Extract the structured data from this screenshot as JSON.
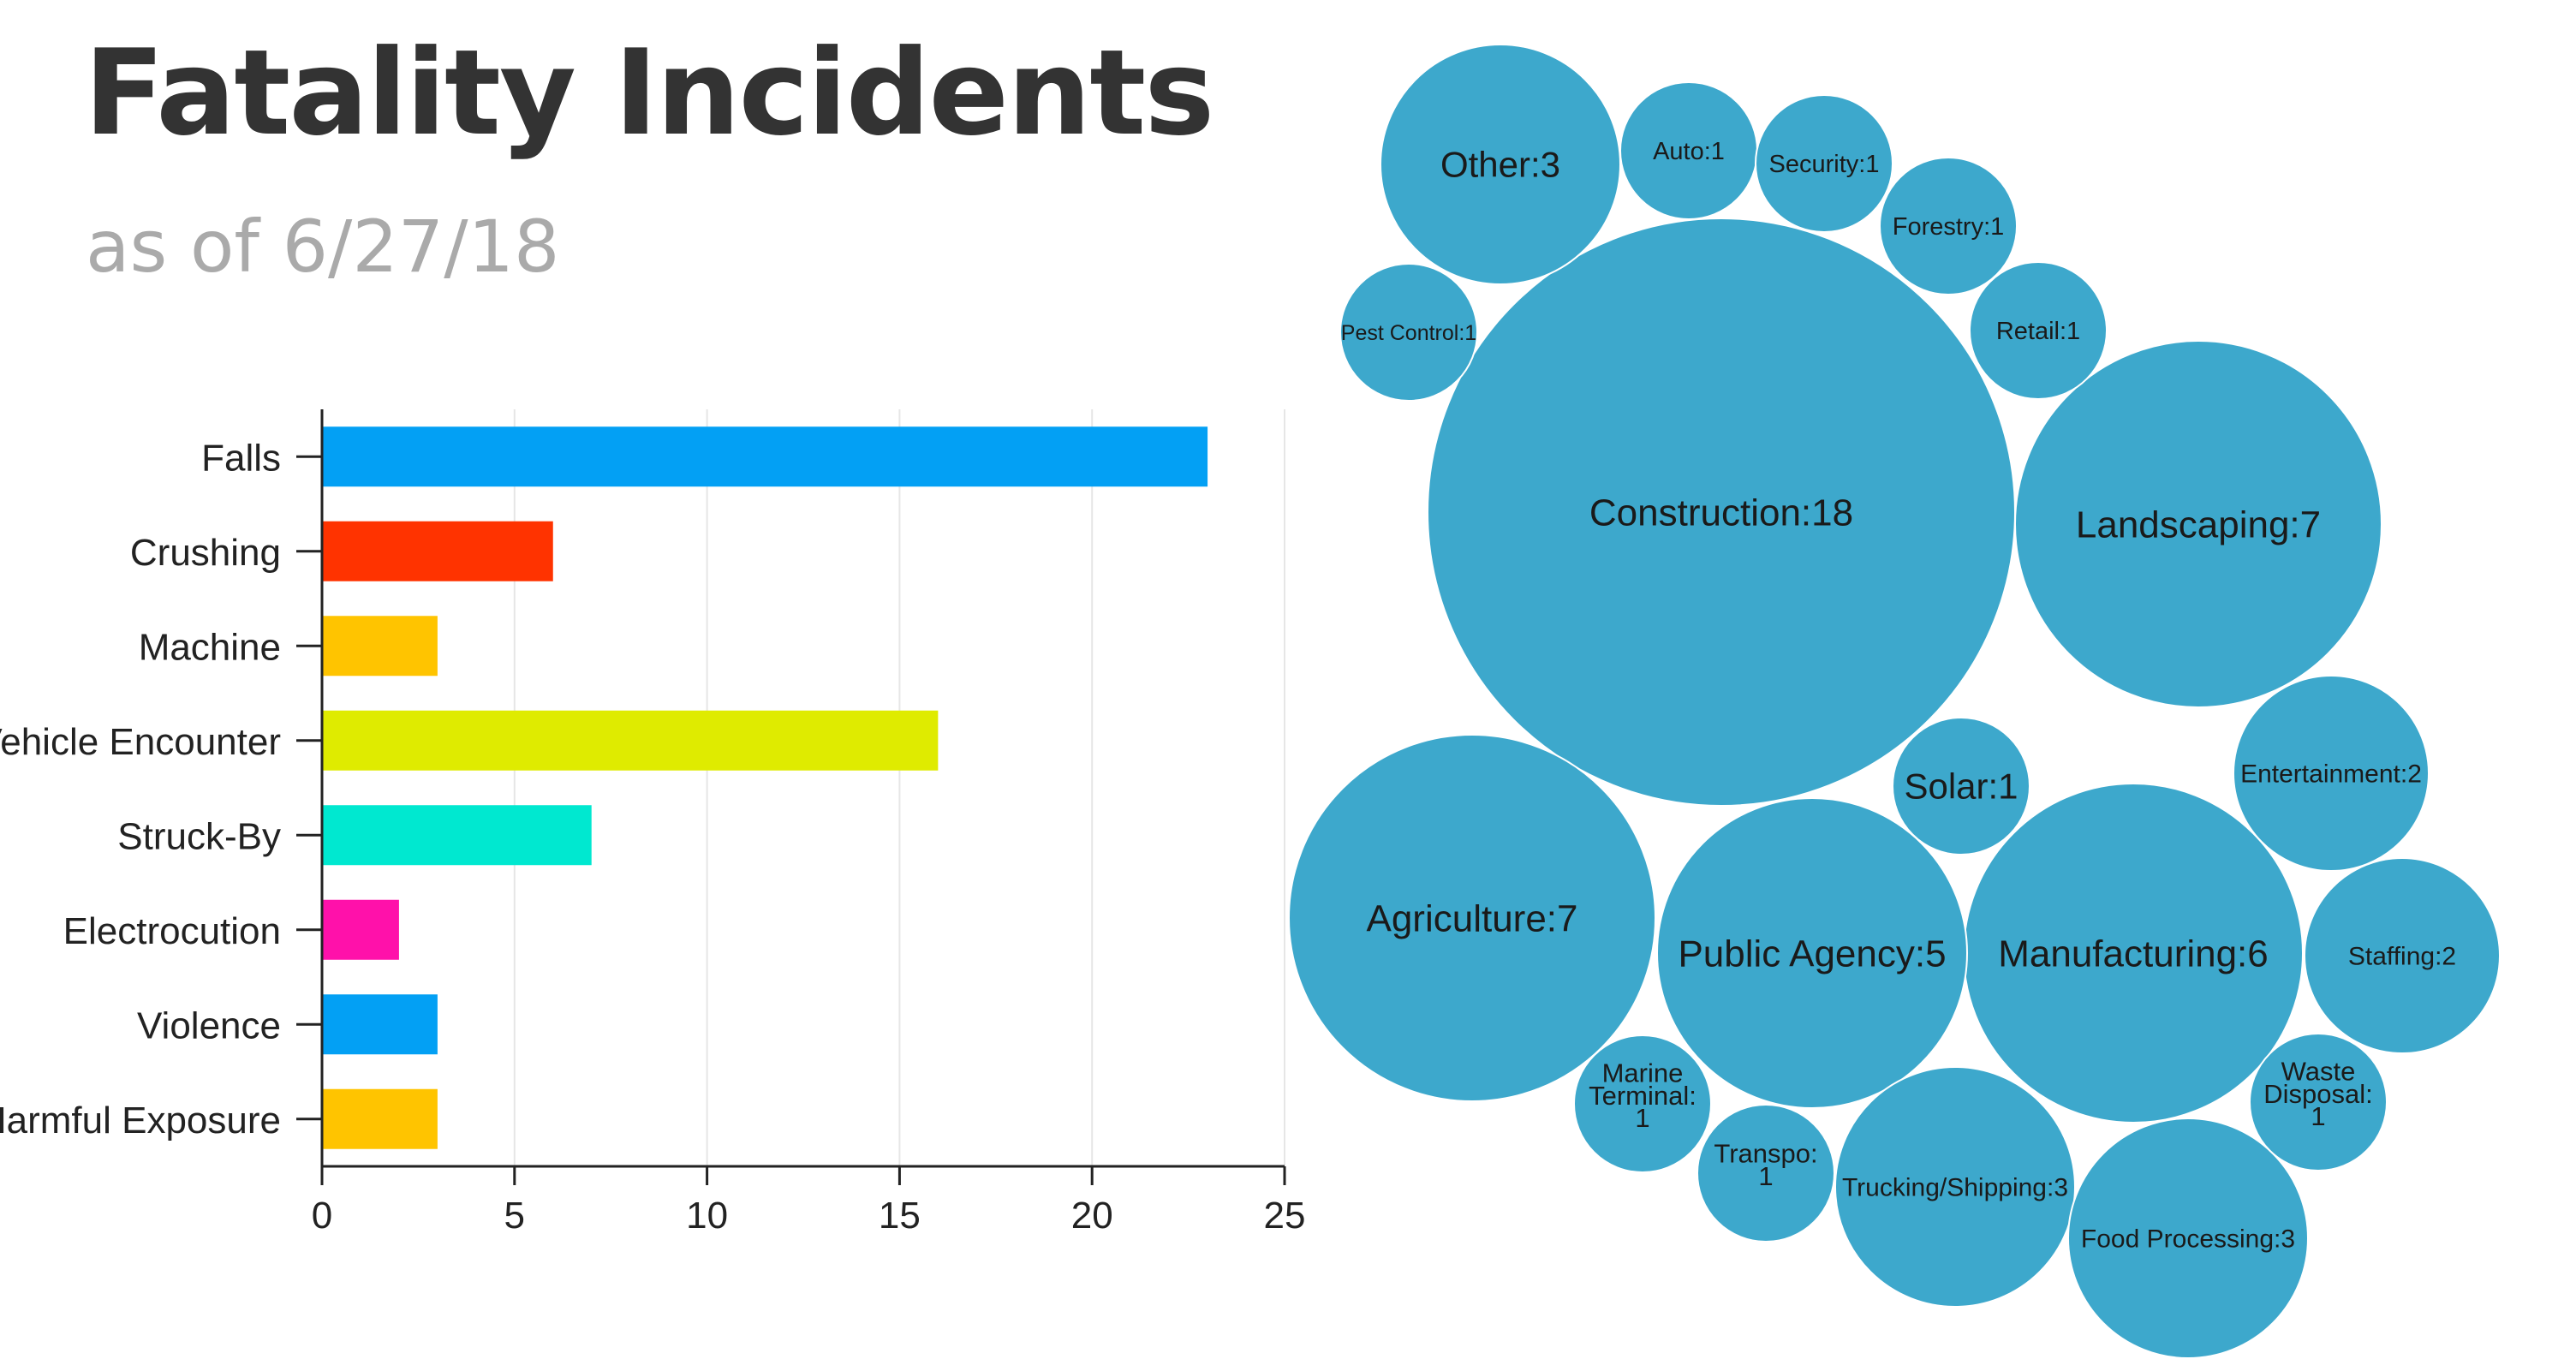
{
  "header": {
    "title": "Fatality Incidents",
    "subtitle": "as of 6/27/18"
  },
  "chart_data": [
    {
      "type": "bar",
      "orientation": "horizontal",
      "categories": [
        "Falls",
        "Crushing",
        "Machine",
        "Vehicle Encounter",
        "Struck-By",
        "Electrocution",
        "Violence",
        "Harmful Exposure"
      ],
      "values": [
        23,
        6,
        3,
        16,
        7,
        2,
        3,
        3
      ],
      "colors": [
        "#03a0f4",
        "#ff3300",
        "#ffc400",
        "#dfeb00",
        "#00e8d0",
        "#ff11aa",
        "#03a0f4",
        "#ffc400"
      ],
      "xlim": [
        0,
        25
      ],
      "xticks": [
        0,
        5,
        10,
        15,
        20,
        25
      ],
      "grid": true
    },
    {
      "type": "bubble",
      "color": "#3da8cc",
      "bubbles": [
        {
          "label": "Construction:18",
          "value": 18
        },
        {
          "label": "Landscaping:7",
          "value": 7
        },
        {
          "label": "Agriculture:7",
          "value": 7
        },
        {
          "label": "Manufacturing:6",
          "value": 6
        },
        {
          "label": "Public Agency:5",
          "value": 5
        },
        {
          "label": "Other:3",
          "value": 3
        },
        {
          "label": "Trucking/Shipping:3",
          "value": 3
        },
        {
          "label": "Food Processing:3",
          "value": 3
        },
        {
          "label": "Entertainment:2",
          "value": 2
        },
        {
          "label": "Staffing:2",
          "value": 2
        },
        {
          "label": "Auto:1",
          "value": 1
        },
        {
          "label": "Security:1",
          "value": 1
        },
        {
          "label": "Forestry:1",
          "value": 1
        },
        {
          "label": "Retail:1",
          "value": 1
        },
        {
          "label": "Pest Control:1",
          "value": 1
        },
        {
          "label": "Solar:1",
          "value": 1
        },
        {
          "label": "Marine Terminal: 1",
          "value": 1
        },
        {
          "label": "Transpo: 1",
          "value": 1
        },
        {
          "label": "Waste Disposal: 1",
          "value": 1
        }
      ]
    }
  ]
}
